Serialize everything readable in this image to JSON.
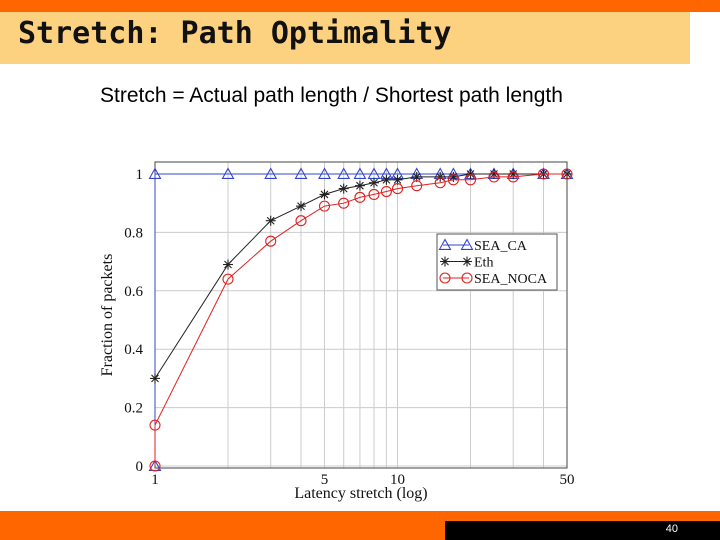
{
  "slide": {
    "title": "Stretch: Path Optimality",
    "subtitle": "Stretch = Actual path length / Shortest path length",
    "page_number": "40"
  },
  "colors": {
    "accent": "#ff6600",
    "title_bg": "#fcd280",
    "sea_ca": "#3344cc",
    "eth": "#222222",
    "sea_noca": "#e02020"
  },
  "chart_data": {
    "type": "line",
    "xlabel": "Latency stretch (log)",
    "ylabel": "Fraction of packets",
    "x_scale": "log",
    "xlim": [
      1,
      50
    ],
    "ylim": [
      0,
      1
    ],
    "x_ticks": [
      1,
      5,
      10,
      50
    ],
    "y_ticks": [
      0,
      0.2,
      0.4,
      0.6,
      0.8,
      1
    ],
    "grid": true,
    "legend_position": "center-right",
    "series": [
      {
        "name": "SEA_CA",
        "marker": "triangle",
        "x": [
          1,
          1,
          2,
          3,
          4,
          5,
          6,
          7,
          8,
          9,
          10,
          12,
          15,
          17,
          20,
          25,
          30,
          40,
          50
        ],
        "y": [
          0,
          1,
          1,
          1,
          1,
          1,
          1,
          1,
          1,
          1,
          1,
          1,
          1,
          1,
          1,
          1,
          1,
          1,
          1
        ]
      },
      {
        "name": "Eth",
        "marker": "star",
        "x": [
          1,
          2,
          3,
          4,
          5,
          6,
          7,
          8,
          9,
          10,
          12,
          15,
          17,
          20,
          25,
          30,
          40,
          50
        ],
        "y": [
          0.3,
          0.69,
          0.84,
          0.89,
          0.93,
          0.95,
          0.96,
          0.97,
          0.98,
          0.98,
          0.99,
          0.99,
          0.99,
          1,
          1,
          1,
          1,
          1
        ]
      },
      {
        "name": "SEA_NOCA",
        "marker": "circle",
        "x": [
          1,
          1,
          2,
          3,
          4,
          5,
          6,
          7,
          8,
          9,
          10,
          12,
          15,
          17,
          20,
          25,
          30,
          40,
          50
        ],
        "y": [
          0,
          0.14,
          0.64,
          0.77,
          0.84,
          0.89,
          0.9,
          0.92,
          0.93,
          0.94,
          0.95,
          0.96,
          0.97,
          0.98,
          0.98,
          0.99,
          0.99,
          1,
          1
        ]
      }
    ]
  }
}
